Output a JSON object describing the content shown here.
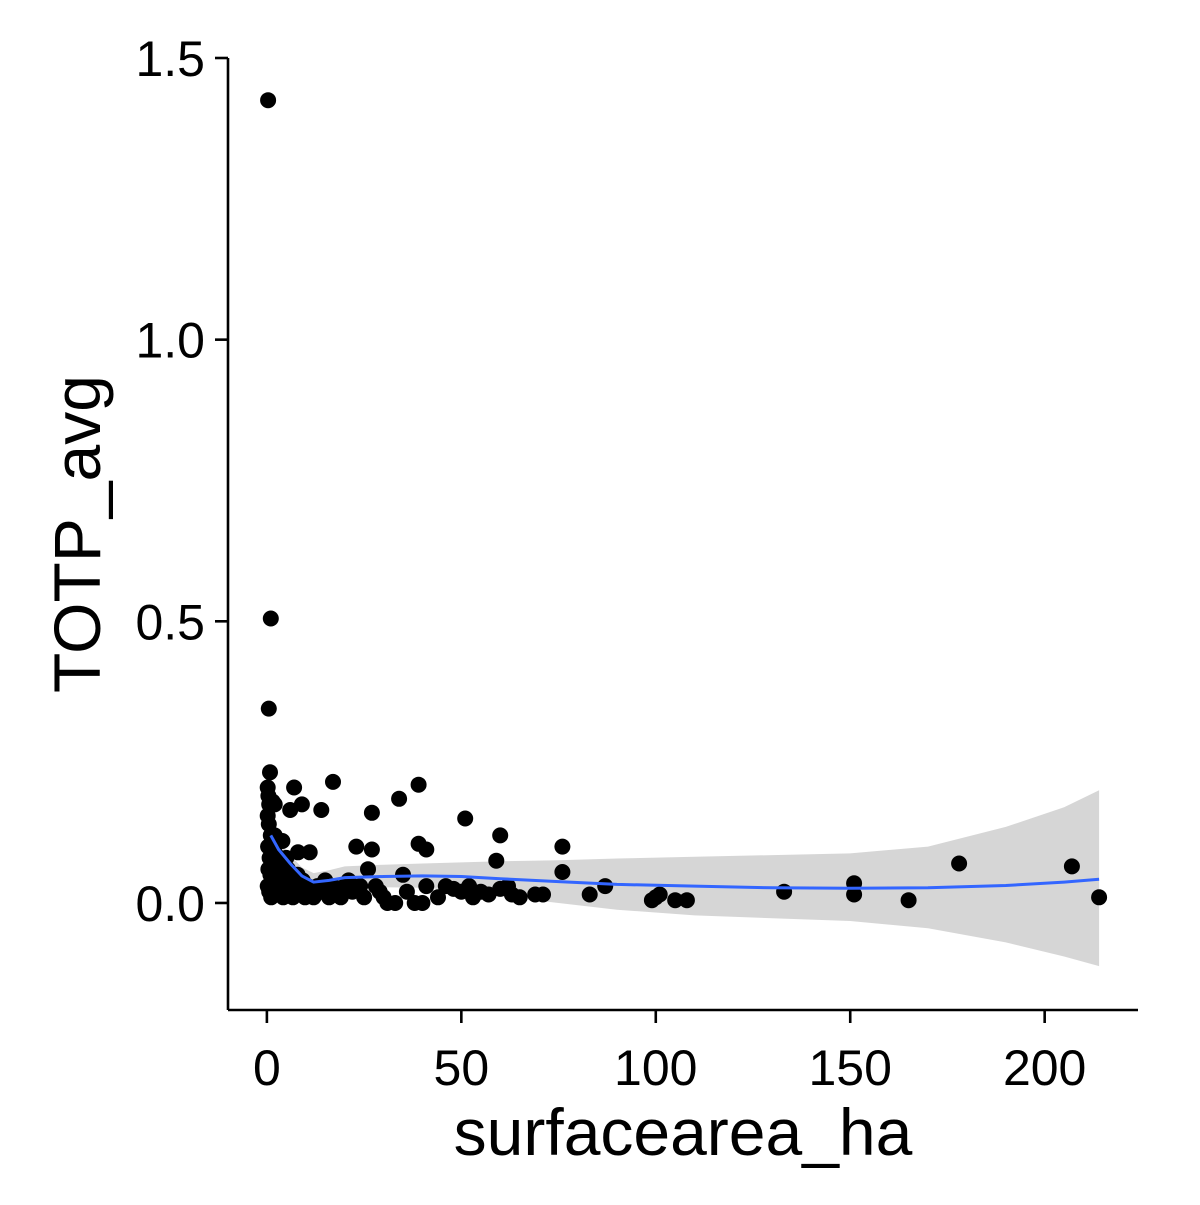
{
  "chart_data": {
    "type": "scatter",
    "title": "",
    "xlabel": "surfacearea_ha",
    "ylabel": "TOTP_avg",
    "xlim": [
      -10,
      224
    ],
    "ylim": [
      -0.19,
      1.5
    ],
    "xticks": [
      0,
      50,
      100,
      150,
      200
    ],
    "xtick_labels": [
      "0",
      "50",
      "100",
      "150",
      "200"
    ],
    "yticks": [
      0.0,
      0.5,
      1.0,
      1.5
    ],
    "ytick_labels": [
      "0.0",
      "0.5",
      "1.0",
      "1.5"
    ],
    "grid": false,
    "legend": "none",
    "colors": {
      "points": "#000000",
      "smooth_line": "#3366FF",
      "confidence_band": "#999999"
    },
    "points": [
      [
        0.3,
        1.425
      ],
      [
        1.0,
        0.505
      ],
      [
        0.5,
        0.345
      ],
      [
        0.8,
        0.232
      ],
      [
        0.2,
        0.205
      ],
      [
        0.4,
        0.19
      ],
      [
        0.6,
        0.175
      ],
      [
        1.5,
        0.18
      ],
      [
        0.2,
        0.155
      ],
      [
        0.5,
        0.14
      ],
      [
        1.0,
        0.12
      ],
      [
        1.2,
        0.105
      ],
      [
        1.8,
        0.095
      ],
      [
        2.4,
        0.085
      ],
      [
        0.3,
        0.1
      ],
      [
        0.7,
        0.08
      ],
      [
        1.5,
        0.07
      ],
      [
        0.4,
        0.06
      ],
      [
        0.9,
        0.05
      ],
      [
        1.3,
        0.04
      ],
      [
        0.2,
        0.03
      ],
      [
        0.6,
        0.02
      ],
      [
        1.1,
        0.01
      ],
      [
        2.0,
        0.015
      ],
      [
        2.6,
        0.03
      ],
      [
        3.1,
        0.05
      ],
      [
        3.6,
        0.02
      ],
      [
        4.2,
        0.01
      ],
      [
        4.8,
        0.04
      ],
      [
        5.4,
        0.06
      ],
      [
        6.0,
        0.02
      ],
      [
        6.7,
        0.01
      ],
      [
        7.3,
        0.03
      ],
      [
        7.9,
        0.05
      ],
      [
        8.5,
        0.02
      ],
      [
        9.2,
        0.04
      ],
      [
        9.8,
        0.01
      ],
      [
        10.5,
        0.03
      ],
      [
        11.2,
        0.02
      ],
      [
        12.0,
        0.01
      ],
      [
        13.0,
        0.03
      ],
      [
        14.0,
        0.02
      ],
      [
        15.0,
        0.04
      ],
      [
        16.0,
        0.01
      ],
      [
        17.0,
        0.03
      ],
      [
        18.0,
        0.02
      ],
      [
        19.0,
        0.01
      ],
      [
        20.0,
        0.03
      ],
      [
        21.0,
        0.04
      ],
      [
        22.0,
        0.02
      ],
      [
        24.0,
        0.03
      ],
      [
        25.0,
        0.01
      ],
      [
        26.0,
        0.06
      ],
      [
        28.0,
        0.03
      ],
      [
        29.0,
        0.02
      ],
      [
        30.0,
        0.01
      ],
      [
        31.0,
        0.0
      ],
      [
        33.0,
        0.0
      ],
      [
        35.0,
        0.05
      ],
      [
        36.0,
        0.02
      ],
      [
        38.0,
        0.0
      ],
      [
        40.0,
        0.0
      ],
      [
        41.0,
        0.03
      ],
      [
        44.0,
        0.01
      ],
      [
        46.0,
        0.03
      ],
      [
        48.0,
        0.025
      ],
      [
        50.0,
        0.02
      ],
      [
        52.0,
        0.03
      ],
      [
        53.0,
        0.01
      ],
      [
        55.0,
        0.02
      ],
      [
        57.0,
        0.015
      ],
      [
        59.0,
        0.075
      ],
      [
        60.0,
        0.025
      ],
      [
        62.0,
        0.03
      ],
      [
        63.0,
        0.015
      ],
      [
        65.0,
        0.01
      ],
      [
        69.0,
        0.015
      ],
      [
        71.0,
        0.015
      ],
      [
        76.0,
        0.055
      ],
      [
        83.0,
        0.015
      ],
      [
        87.0,
        0.03
      ],
      [
        99.0,
        0.005
      ],
      [
        100.0,
        0.01
      ],
      [
        101.0,
        0.015
      ],
      [
        105.0,
        0.005
      ],
      [
        108.0,
        0.005
      ],
      [
        133.0,
        0.02
      ],
      [
        151.0,
        0.035
      ],
      [
        151.0,
        0.015
      ],
      [
        165.0,
        0.005
      ],
      [
        178.0,
        0.07
      ],
      [
        207.0,
        0.065
      ],
      [
        214.0,
        0.01
      ],
      [
        2.0,
        0.175
      ],
      [
        6.0,
        0.165
      ],
      [
        7.0,
        0.205
      ],
      [
        9.0,
        0.175
      ],
      [
        14.0,
        0.165
      ],
      [
        17.0,
        0.215
      ],
      [
        27.0,
        0.16
      ],
      [
        34.0,
        0.185
      ],
      [
        39.0,
        0.21
      ],
      [
        23.0,
        0.1
      ],
      [
        27.0,
        0.095
      ],
      [
        39.0,
        0.105
      ],
      [
        41.0,
        0.095
      ],
      [
        51.0,
        0.15
      ],
      [
        60.0,
        0.12
      ],
      [
        76.0,
        0.1
      ],
      [
        2.0,
        0.12
      ],
      [
        4.0,
        0.11
      ],
      [
        8.0,
        0.09
      ],
      [
        11.0,
        0.09
      ],
      [
        5.0,
        0.08
      ],
      [
        2.0,
        0.06
      ],
      [
        3.0,
        0.08
      ]
    ],
    "smooth": {
      "x": [
        1,
        3,
        6,
        9,
        12,
        16,
        20,
        30,
        40,
        50,
        60,
        75,
        90,
        110,
        130,
        150,
        170,
        190,
        205,
        214
      ],
      "y": [
        0.12,
        0.095,
        0.07,
        0.048,
        0.037,
        0.04,
        0.045,
        0.047,
        0.048,
        0.047,
        0.043,
        0.038,
        0.033,
        0.03,
        0.027,
        0.026,
        0.027,
        0.031,
        0.037,
        0.042
      ],
      "ymin": [
        0.1,
        0.08,
        0.055,
        0.035,
        0.023,
        0.024,
        0.027,
        0.028,
        0.027,
        0.022,
        0.012,
        0.0,
        -0.012,
        -0.022,
        -0.027,
        -0.032,
        -0.045,
        -0.07,
        -0.095,
        -0.112
      ],
      "ymax": [
        0.14,
        0.11,
        0.085,
        0.063,
        0.053,
        0.058,
        0.065,
        0.068,
        0.07,
        0.072,
        0.074,
        0.076,
        0.079,
        0.082,
        0.085,
        0.088,
        0.1,
        0.135,
        0.17,
        0.2
      ]
    }
  }
}
